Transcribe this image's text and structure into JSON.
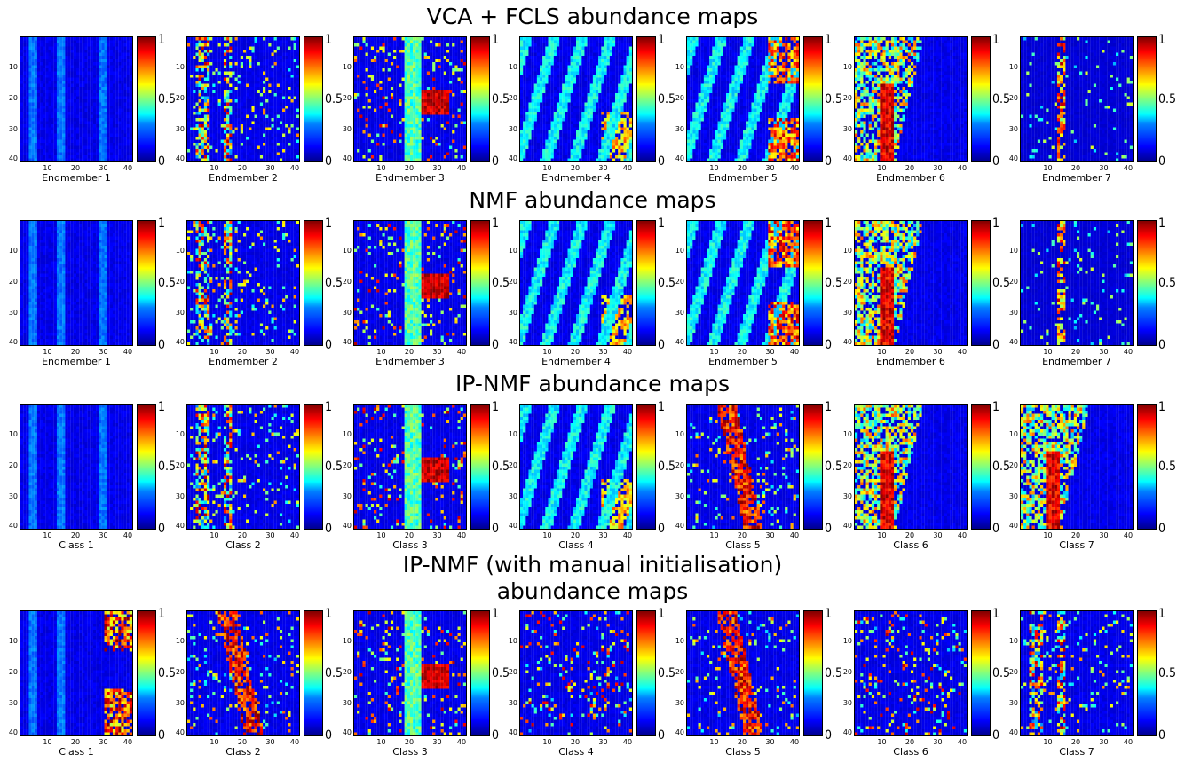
{
  "chart_data": {
    "type": "heatmap",
    "rows": [
      {
        "title": "VCA + FCLS abundance maps",
        "panels": [
          {
            "label": "Endmember 1",
            "pattern": "stripes"
          },
          {
            "label": "Endmember 2",
            "pattern": "speckle-columns"
          },
          {
            "label": "Endmember 3",
            "pattern": "hot-block"
          },
          {
            "label": "Endmember 4",
            "pattern": "cyan-bands"
          },
          {
            "label": "Endmember 5",
            "pattern": "cyan-bands-hot-right"
          },
          {
            "label": "Endmember 6",
            "pattern": "dense-left"
          },
          {
            "label": "Endmember 7",
            "pattern": "sparse-line"
          }
        ]
      },
      {
        "title": "NMF abundance maps",
        "panels": [
          {
            "label": "Endmember 1",
            "pattern": "stripes"
          },
          {
            "label": "Endmember 2",
            "pattern": "speckle-columns"
          },
          {
            "label": "Endmember 3",
            "pattern": "hot-block"
          },
          {
            "label": "Endmember 4",
            "pattern": "cyan-bands"
          },
          {
            "label": "Endmember 5",
            "pattern": "cyan-bands-hot-right"
          },
          {
            "label": "Endmember 6",
            "pattern": "dense-left"
          },
          {
            "label": "Endmember 7",
            "pattern": "sparse-line"
          }
        ]
      },
      {
        "title": "IP-NMF abundance maps",
        "panels": [
          {
            "label": "Class 1",
            "pattern": "stripes"
          },
          {
            "label": "Class 2",
            "pattern": "speckle-columns"
          },
          {
            "label": "Class 3",
            "pattern": "hot-block"
          },
          {
            "label": "Class 4",
            "pattern": "cyan-bands"
          },
          {
            "label": "Class 5",
            "pattern": "diagonal-hot"
          },
          {
            "label": "Class 6",
            "pattern": "dense-left"
          },
          {
            "label": "Class 7",
            "pattern": "dense-left"
          }
        ]
      },
      {
        "title": "IP-NMF (with manual initialisation)\nabundance maps",
        "panels": [
          {
            "label": "Class 1",
            "pattern": "right-block"
          },
          {
            "label": "Class 2",
            "pattern": "diagonal-hot"
          },
          {
            "label": "Class 3",
            "pattern": "hot-block"
          },
          {
            "label": "Class 4",
            "pattern": "sparse"
          },
          {
            "label": "Class 5",
            "pattern": "diagonal-hot"
          },
          {
            "label": "Class 6",
            "pattern": "sparse"
          },
          {
            "label": "Class 7",
            "pattern": "speckle-columns"
          }
        ]
      }
    ],
    "grid_size": [
      40,
      40
    ],
    "x_ticks": [
      "10",
      "20",
      "30",
      "40"
    ],
    "y_ticks": [
      "10",
      "20",
      "30",
      "40"
    ],
    "colorbar": {
      "min": 0,
      "max": 1,
      "ticks": [
        "0",
        "0.5",
        "1"
      ],
      "colormap": "jet"
    },
    "colors": {
      "low": "#00008f",
      "mid": "#80ff80",
      "high": "#800000"
    }
  }
}
